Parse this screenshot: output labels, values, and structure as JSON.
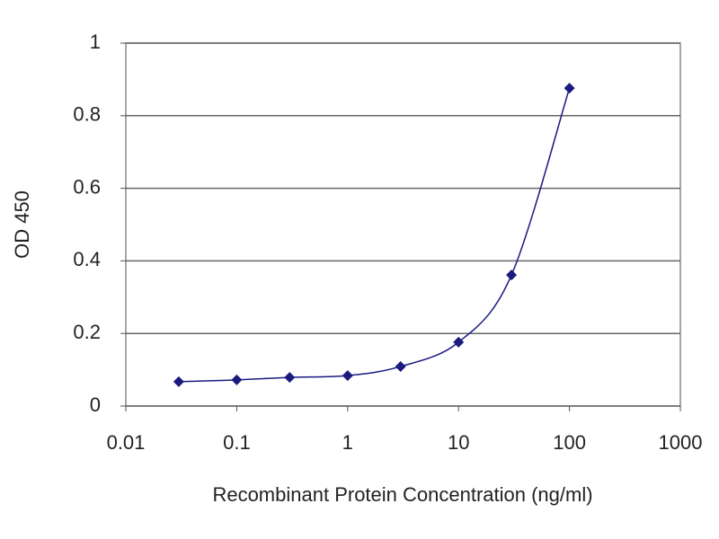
{
  "chart_data": {
    "type": "line",
    "x_label": "Recombinant Protein Concentration (ng/ml)",
    "y_label": "OD 450",
    "x": [
      0.03,
      0.1,
      0.3,
      1,
      3,
      10,
      30,
      100
    ],
    "values": [
      0.067,
      0.072,
      0.079,
      0.084,
      0.109,
      0.176,
      0.361,
      0.876
    ],
    "color": "#1a1a80",
    "x_log": true,
    "xlim": [
      0.01,
      1000
    ],
    "xticks": [
      0.01,
      0.1,
      1,
      10,
      100,
      1000
    ],
    "ylim": [
      0,
      1
    ],
    "yticks": [
      0,
      0.2,
      0.4,
      0.6,
      0.8,
      1
    ],
    "grid": true
  }
}
